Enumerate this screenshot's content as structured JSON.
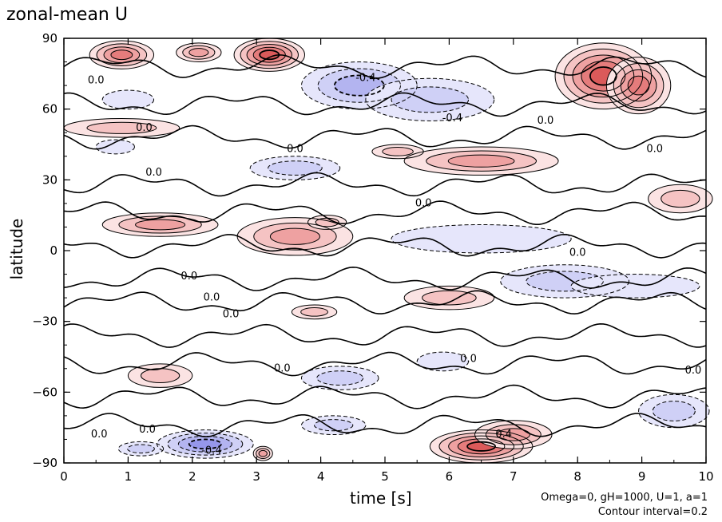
{
  "chart_data": {
    "type": "heatmap",
    "title": "zonal-mean U",
    "xlabel": "time [s]",
    "ylabel": "latitude",
    "xlim": [
      0,
      10
    ],
    "ylim": [
      -90,
      90
    ],
    "x_ticks": [
      0,
      1,
      2,
      3,
      4,
      5,
      6,
      7,
      8,
      9,
      10
    ],
    "y_ticks": [
      -90,
      -60,
      -30,
      0,
      30,
      60,
      90
    ],
    "contour_interval": 0.2,
    "contour_labels": [
      {
        "text": "0.0",
        "x": 0.5,
        "y": 72
      },
      {
        "text": "0.0",
        "x": 1.25,
        "y": 52
      },
      {
        "text": "0.0",
        "x": 1.4,
        "y": 33
      },
      {
        "text": "0.0",
        "x": 3.6,
        "y": 43
      },
      {
        "text": "-0.4",
        "x": 4.7,
        "y": 73
      },
      {
        "text": "-0.4",
        "x": 6.05,
        "y": 56
      },
      {
        "text": "0.0",
        "x": 7.5,
        "y": 55
      },
      {
        "text": "0.0",
        "x": 9.2,
        "y": 43
      },
      {
        "text": "0.0",
        "x": 5.6,
        "y": 20
      },
      {
        "text": "0.0",
        "x": 8.0,
        "y": -1
      },
      {
        "text": "0.0",
        "x": 1.95,
        "y": -11
      },
      {
        "text": "0.0",
        "x": 2.3,
        "y": -20
      },
      {
        "text": "0.0",
        "x": 2.6,
        "y": -27
      },
      {
        "text": "0.0",
        "x": 3.4,
        "y": -50
      },
      {
        "text": "0.0",
        "x": 6.3,
        "y": -46
      },
      {
        "text": "0.0",
        "x": 9.8,
        "y": -51
      },
      {
        "text": "0.0",
        "x": 0.55,
        "y": -78
      },
      {
        "text": "0.0",
        "x": 1.3,
        "y": -76
      },
      {
        "text": "0.4",
        "x": 6.85,
        "y": -78
      },
      {
        "text": "-0.4",
        "x": 2.3,
        "y": -85
      }
    ],
    "anomalies": [
      {
        "sign": 1,
        "x": 3.2,
        "y": 83,
        "rx": 0.55,
        "ry": 7,
        "amp": 1.0
      },
      {
        "sign": 1,
        "x": 0.9,
        "y": 83,
        "rx": 0.5,
        "ry": 6,
        "amp": 0.7
      },
      {
        "sign": 1,
        "x": 2.1,
        "y": 84,
        "rx": 0.35,
        "ry": 4,
        "amp": 0.5
      },
      {
        "sign": 1,
        "x": 8.4,
        "y": 74,
        "rx": 0.75,
        "ry": 14,
        "amp": 1.0
      },
      {
        "sign": 1,
        "x": 8.95,
        "y": 70,
        "rx": 0.5,
        "ry": 12,
        "amp": 0.7
      },
      {
        "sign": -1,
        "x": 4.6,
        "y": 70,
        "rx": 0.9,
        "ry": 10,
        "amp": 0.8
      },
      {
        "sign": -1,
        "x": 5.7,
        "y": 64,
        "rx": 1.0,
        "ry": 9,
        "amp": 0.6
      },
      {
        "sign": -1,
        "x": 1.0,
        "y": 64,
        "rx": 0.4,
        "ry": 4,
        "amp": 0.35
      },
      {
        "sign": 1,
        "x": 0.9,
        "y": 52,
        "rx": 0.9,
        "ry": 4,
        "amp": 0.3
      },
      {
        "sign": 1,
        "x": 6.5,
        "y": 38,
        "rx": 1.2,
        "ry": 6,
        "amp": 0.6
      },
      {
        "sign": 1,
        "x": 5.2,
        "y": 42,
        "rx": 0.4,
        "ry": 3,
        "amp": 0.45
      },
      {
        "sign": -1,
        "x": 3.6,
        "y": 35,
        "rx": 0.7,
        "ry": 5,
        "amp": 0.45
      },
      {
        "sign": -1,
        "x": 0.8,
        "y": 44,
        "rx": 0.3,
        "ry": 3,
        "amp": 0.3
      },
      {
        "sign": 1,
        "x": 1.5,
        "y": 11,
        "rx": 0.9,
        "ry": 5,
        "amp": 0.5
      },
      {
        "sign": 1,
        "x": 3.6,
        "y": 6,
        "rx": 0.9,
        "ry": 8,
        "amp": 0.6
      },
      {
        "sign": 1,
        "x": 4.1,
        "y": 12,
        "rx": 0.3,
        "ry": 3,
        "amp": 0.4
      },
      {
        "sign": 1,
        "x": 9.6,
        "y": 22,
        "rx": 0.5,
        "ry": 6,
        "amp": 0.3
      },
      {
        "sign": -1,
        "x": 6.5,
        "y": 5,
        "rx": 1.4,
        "ry": 6,
        "amp": 0.3
      },
      {
        "sign": -1,
        "x": 7.8,
        "y": -13,
        "rx": 1.0,
        "ry": 7,
        "amp": 0.4
      },
      {
        "sign": -1,
        "x": 8.9,
        "y": -15,
        "rx": 1.0,
        "ry": 5,
        "amp": 0.3
      },
      {
        "sign": 1,
        "x": 6.0,
        "y": -20,
        "rx": 0.7,
        "ry": 5,
        "amp": 0.4
      },
      {
        "sign": 1,
        "x": 3.9,
        "y": -26,
        "rx": 0.35,
        "ry": 3,
        "amp": 0.3
      },
      {
        "sign": 1,
        "x": 1.5,
        "y": -53,
        "rx": 0.5,
        "ry": 5,
        "amp": 0.45
      },
      {
        "sign": -1,
        "x": 4.3,
        "y": -54,
        "rx": 0.6,
        "ry": 5,
        "amp": 0.45
      },
      {
        "sign": -1,
        "x": 5.9,
        "y": -47,
        "rx": 0.4,
        "ry": 4,
        "amp": 0.3
      },
      {
        "sign": -1,
        "x": 2.2,
        "y": -82,
        "rx": 0.75,
        "ry": 6,
        "amp": 0.9
      },
      {
        "sign": -1,
        "x": 1.2,
        "y": -84,
        "rx": 0.35,
        "ry": 3,
        "amp": 0.4
      },
      {
        "sign": -1,
        "x": 4.2,
        "y": -74,
        "rx": 0.5,
        "ry": 4,
        "amp": 0.45
      },
      {
        "sign": 1,
        "x": 6.5,
        "y": -83,
        "rx": 0.8,
        "ry": 7,
        "amp": 1.0
      },
      {
        "sign": 1,
        "x": 7.0,
        "y": -78,
        "rx": 0.6,
        "ry": 6,
        "amp": 0.6
      },
      {
        "sign": -1,
        "x": 9.5,
        "y": -68,
        "rx": 0.55,
        "ry": 7,
        "amp": 0.5
      },
      {
        "sign": 1,
        "x": 3.1,
        "y": -86,
        "rx": 0.15,
        "ry": 3,
        "amp": 0.6
      }
    ]
  },
  "annotations": {
    "params": "Omega=0, gH=1000, U=1, a=1",
    "contour_interval": "Contour interval=0.2"
  }
}
